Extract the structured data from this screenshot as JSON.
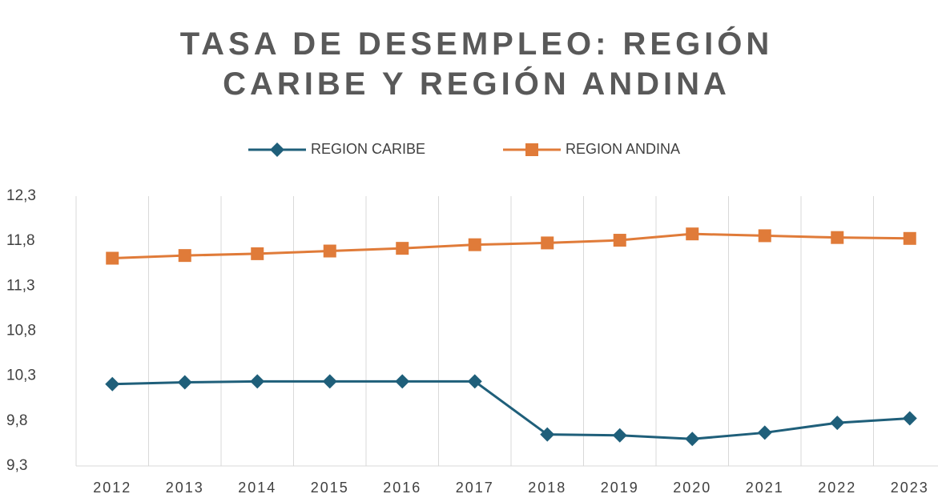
{
  "chart_data": {
    "type": "line",
    "title": "TASA DE DESEMPLEO: REGIÓN CARIBE Y REGIÓN ANDINA",
    "categories": [
      "2012",
      "2013",
      "2014",
      "2015",
      "2016",
      "2017",
      "2018",
      "2019",
      "2020",
      "2021",
      "2022",
      "2023"
    ],
    "series": [
      {
        "name": "REGION CARIBE",
        "color": "#1f5f7a",
        "marker": "diamond",
        "values": [
          10.21,
          10.23,
          10.24,
          10.24,
          10.24,
          10.24,
          9.65,
          9.64,
          9.6,
          9.67,
          9.78,
          9.83
        ]
      },
      {
        "name": "REGION ANDINA",
        "color": "#e07b39",
        "marker": "square",
        "values": [
          11.61,
          11.64,
          11.66,
          11.69,
          11.72,
          11.76,
          11.78,
          11.81,
          11.88,
          11.86,
          11.84,
          11.83
        ]
      }
    ],
    "ylim": [
      9.3,
      12.3
    ],
    "yticks": [
      {
        "value": 9.3,
        "label": "9,3"
      },
      {
        "value": 9.8,
        "label": "9,8"
      },
      {
        "value": 10.3,
        "label": "10,3"
      },
      {
        "value": 10.8,
        "label": "10,8"
      },
      {
        "value": 11.3,
        "label": "11,3"
      },
      {
        "value": 11.8,
        "label": "11,8"
      },
      {
        "value": 12.3,
        "label": "12,3"
      }
    ],
    "legend": "top",
    "grid": "vertical"
  }
}
